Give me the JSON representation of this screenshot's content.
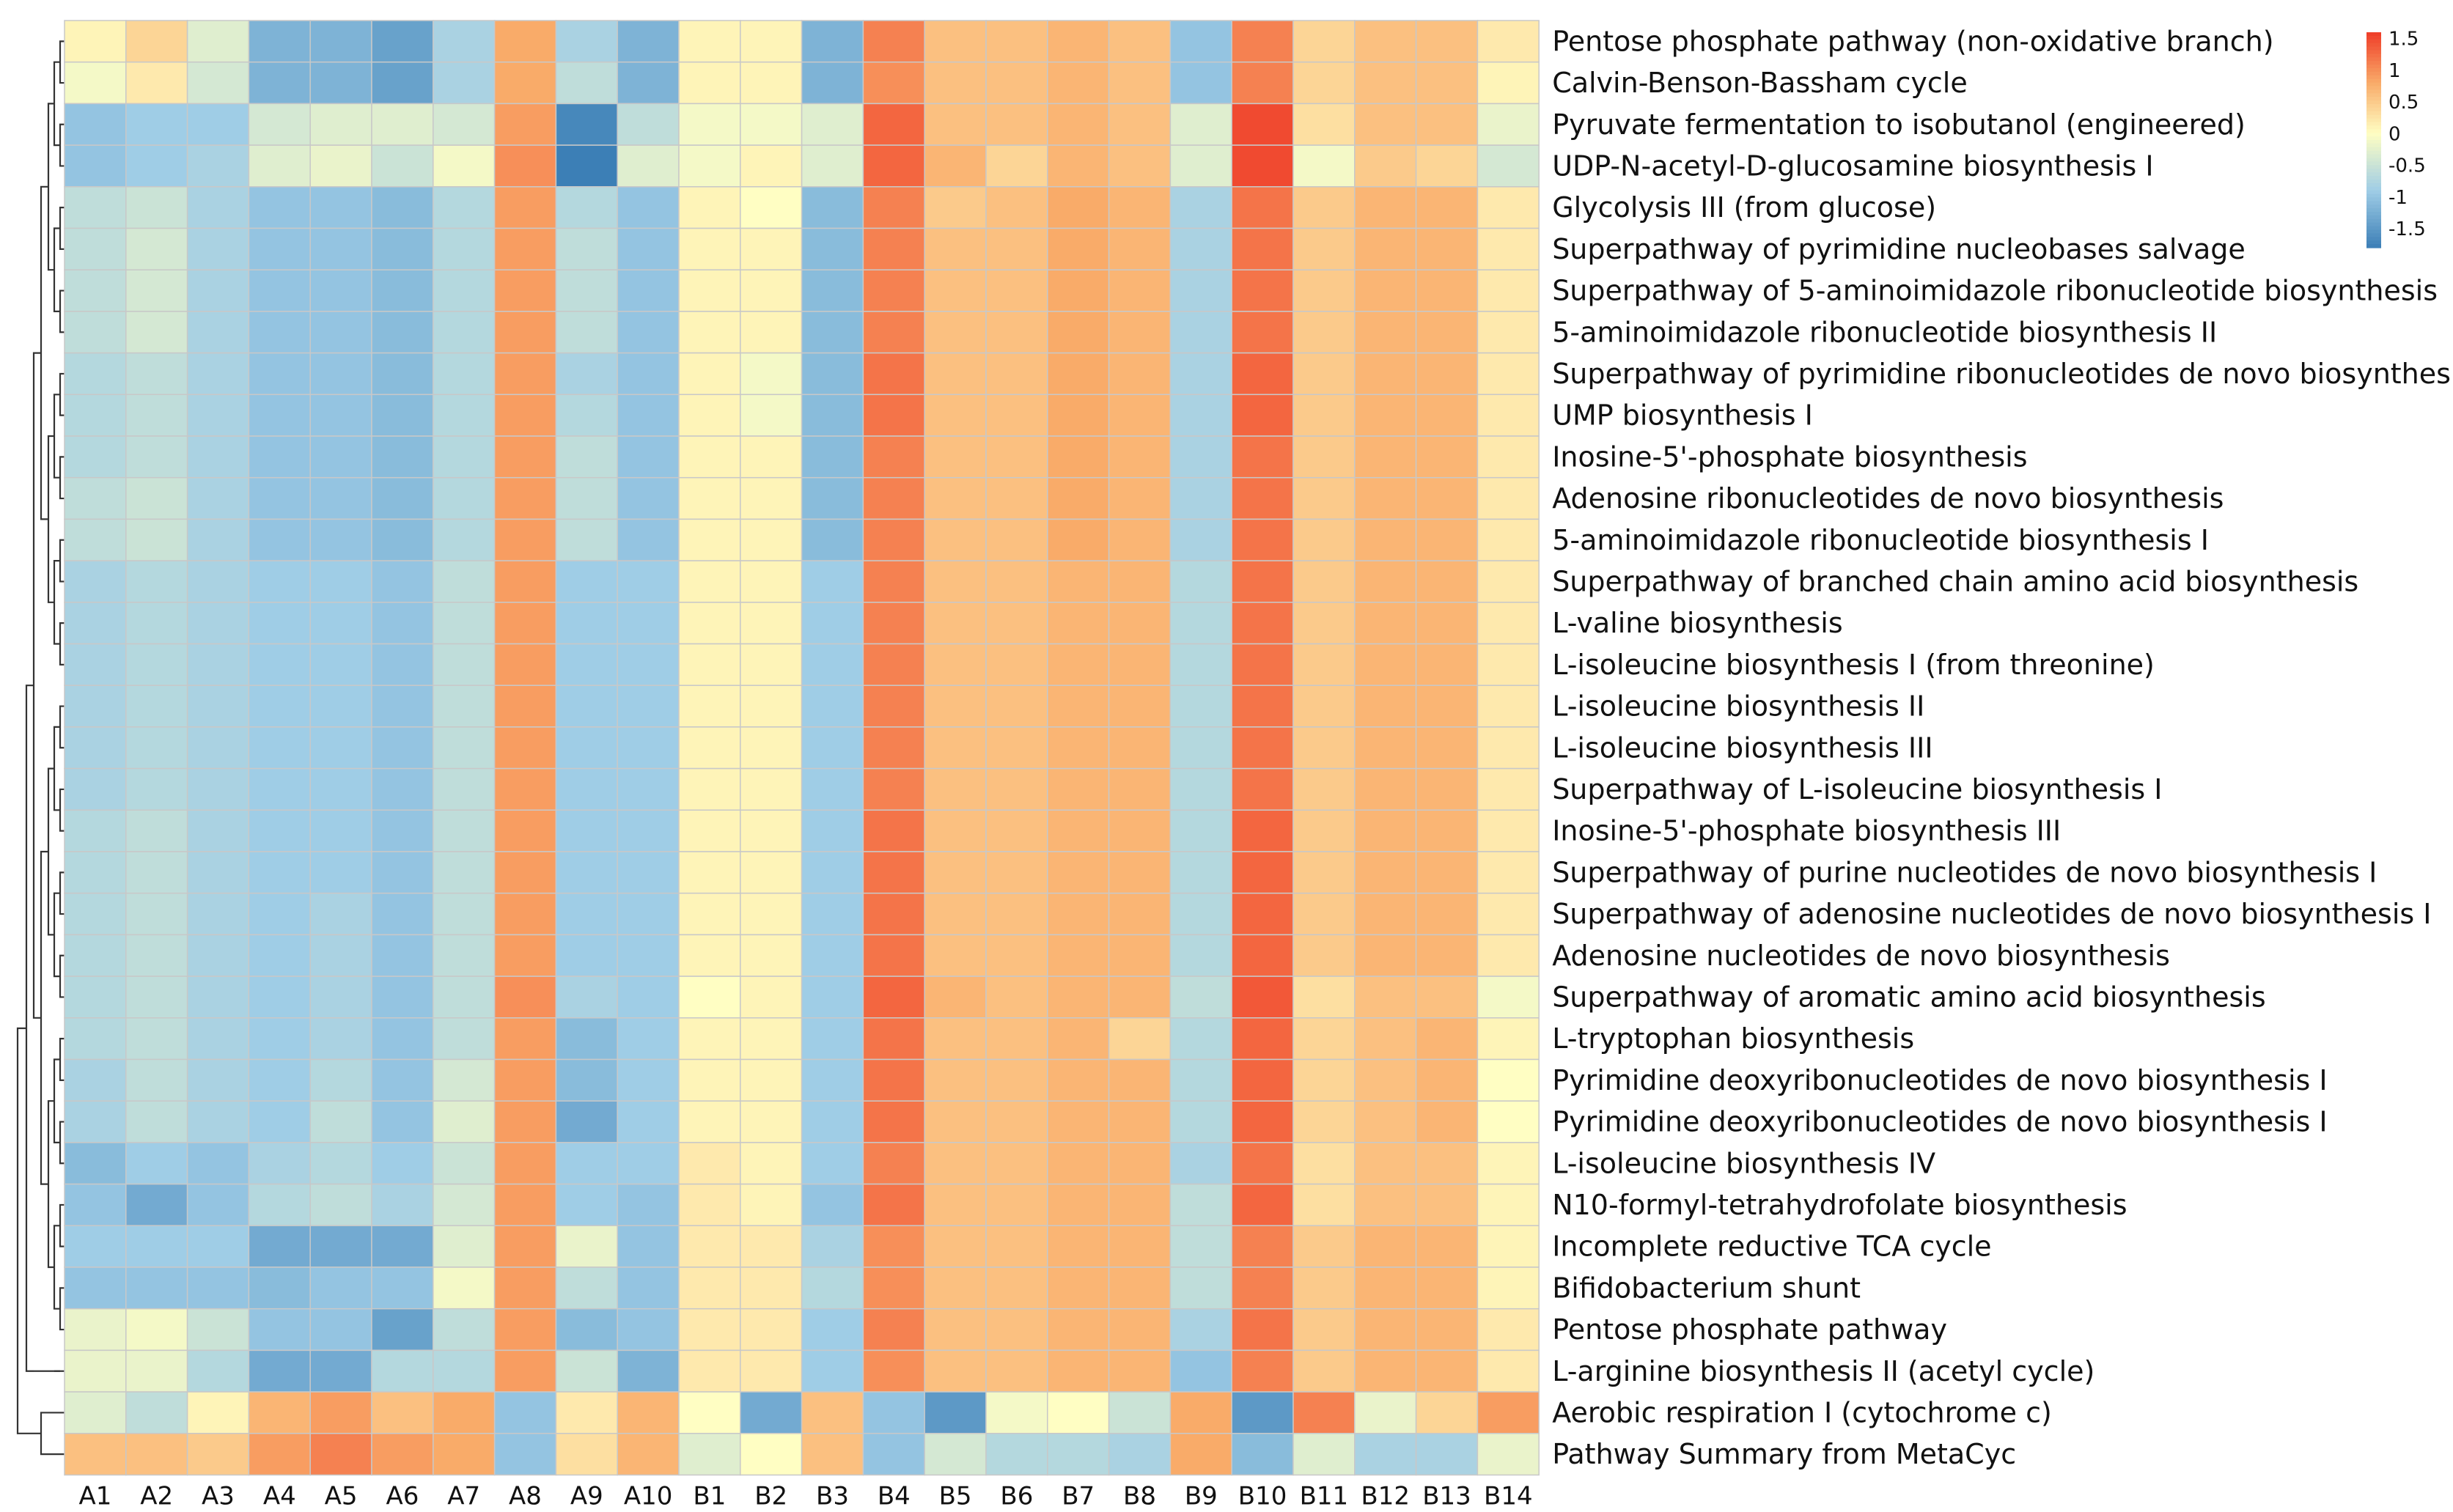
{
  "chart_data": {
    "type": "heatmap",
    "title": "",
    "columns": [
      "A1",
      "A2",
      "A3",
      "A4",
      "A5",
      "A6",
      "A7",
      "A8",
      "A9",
      "A10",
      "B1",
      "B2",
      "B3",
      "B4",
      "B5",
      "B6",
      "B7",
      "B8",
      "B9",
      "B10",
      "B11",
      "B12",
      "B13",
      "B14"
    ],
    "rows": [
      "Pentose phosphate pathway (non-oxidative branch)",
      "Calvin-Benson-Bassham cycle",
      "Pyruvate fermentation to isobutanol (engineered)",
      "UDP-N-acetyl-D-glucosamine biosynthesis I",
      "Glycolysis III (from glucose)",
      "Superpathway of pyrimidine nucleobases salvage",
      "Superpathway of 5-aminoimidazole ribonucleotide biosynthesis",
      "5-aminoimidazole ribonucleotide biosynthesis II",
      "Superpathway of pyrimidine ribonucleotides de novo biosynthesis",
      "UMP biosynthesis I",
      "Inosine-5'-phosphate biosynthesis",
      "Adenosine ribonucleotides de novo biosynthesis",
      "5-aminoimidazole ribonucleotide biosynthesis I",
      "Superpathway of branched chain amino acid biosynthesis",
      "L-valine biosynthesis",
      "L-isoleucine biosynthesis I (from threonine)",
      "L-isoleucine biosynthesis II",
      "L-isoleucine biosynthesis III",
      "Superpathway of L-isoleucine biosynthesis I",
      "Inosine-5'-phosphate biosynthesis III",
      "Superpathway of purine nucleotides de novo biosynthesis I",
      "Superpathway of adenosine nucleotides de novo biosynthesis I",
      "Adenosine nucleotides de novo biosynthesis",
      "Superpathway of aromatic amino acid biosynthesis",
      "L-tryptophan biosynthesis",
      "Pyrimidine deoxyribonucleotides de novo biosynthesis I",
      "Pyrimidine deoxyribonucleotides de novo biosynthesis I",
      "L-isoleucine biosynthesis IV",
      "N10-formyl-tetrahydrofolate biosynthesis",
      "Incomplete reductive TCA cycle",
      "Bifidobacterium shunt",
      "Pentose phosphate pathway",
      "L-arginine biosynthesis II (acetyl cycle)",
      "Aerobic respiration I (cytochrome c)",
      "Pathway Summary from MetaCyc"
    ],
    "values": [
      [
        0.1,
        0.4,
        -0.3,
        -1.2,
        -1.2,
        -1.4,
        -0.8,
        0.8,
        -0.8,
        -1.2,
        0.1,
        0.1,
        -1.2,
        1.1,
        0.6,
        0.6,
        0.7,
        0.6,
        -1.0,
        1.1,
        0.4,
        0.6,
        0.6,
        0.2
      ],
      [
        -0.1,
        0.2,
        -0.4,
        -1.2,
        -1.2,
        -1.4,
        -0.8,
        0.8,
        -0.6,
        -1.2,
        0.1,
        0.1,
        -1.2,
        1.0,
        0.6,
        0.6,
        0.7,
        0.6,
        -1.0,
        1.1,
        0.4,
        0.6,
        0.6,
        0.1
      ],
      [
        -1.0,
        -0.9,
        -0.9,
        -0.4,
        -0.3,
        -0.3,
        -0.4,
        0.9,
        -1.7,
        -0.6,
        -0.1,
        -0.1,
        -0.3,
        1.3,
        0.6,
        0.6,
        0.7,
        0.6,
        -0.3,
        1.5,
        0.3,
        0.6,
        0.6,
        -0.2
      ],
      [
        -1.0,
        -0.9,
        -0.8,
        -0.3,
        -0.2,
        -0.5,
        -0.1,
        1.0,
        -1.8,
        -0.3,
        -0.1,
        0.1,
        -0.3,
        1.3,
        0.7,
        0.4,
        0.7,
        0.6,
        -0.3,
        1.5,
        -0.1,
        0.5,
        0.4,
        -0.4
      ],
      [
        -0.6,
        -0.5,
        -0.8,
        -1.0,
        -1.0,
        -1.1,
        -0.7,
        0.9,
        -0.7,
        -1.0,
        0.1,
        0.0,
        -1.1,
        1.1,
        0.5,
        0.6,
        0.8,
        0.7,
        -0.8,
        1.2,
        0.5,
        0.7,
        0.7,
        0.2
      ],
      [
        -0.6,
        -0.4,
        -0.8,
        -1.0,
        -1.0,
        -1.1,
        -0.7,
        0.9,
        -0.6,
        -1.0,
        0.1,
        0.1,
        -1.1,
        1.1,
        0.6,
        0.6,
        0.8,
        0.7,
        -0.8,
        1.2,
        0.5,
        0.7,
        0.7,
        0.2
      ],
      [
        -0.6,
        -0.4,
        -0.8,
        -1.0,
        -1.0,
        -1.1,
        -0.7,
        0.9,
        -0.6,
        -1.0,
        0.1,
        0.1,
        -1.1,
        1.1,
        0.6,
        0.6,
        0.8,
        0.7,
        -0.8,
        1.2,
        0.5,
        0.7,
        0.7,
        0.2
      ],
      [
        -0.6,
        -0.4,
        -0.8,
        -1.0,
        -1.0,
        -1.1,
        -0.7,
        0.9,
        -0.6,
        -1.0,
        0.1,
        0.1,
        -1.1,
        1.1,
        0.6,
        0.6,
        0.8,
        0.7,
        -0.8,
        1.2,
        0.5,
        0.7,
        0.7,
        0.2
      ],
      [
        -0.7,
        -0.6,
        -0.8,
        -1.0,
        -1.0,
        -1.1,
        -0.7,
        0.9,
        -0.8,
        -1.0,
        0.1,
        -0.1,
        -1.1,
        1.2,
        0.6,
        0.6,
        0.8,
        0.7,
        -0.8,
        1.3,
        0.5,
        0.7,
        0.7,
        0.2
      ],
      [
        -0.7,
        -0.6,
        -0.8,
        -1.0,
        -1.0,
        -1.1,
        -0.7,
        0.9,
        -0.7,
        -1.0,
        0.1,
        -0.1,
        -1.1,
        1.2,
        0.6,
        0.6,
        0.8,
        0.7,
        -0.8,
        1.3,
        0.5,
        0.7,
        0.7,
        0.2
      ],
      [
        -0.7,
        -0.6,
        -0.8,
        -1.0,
        -1.0,
        -1.1,
        -0.7,
        0.9,
        -0.6,
        -1.0,
        0.1,
        0.1,
        -1.1,
        1.1,
        0.6,
        0.6,
        0.8,
        0.7,
        -0.8,
        1.2,
        0.5,
        0.7,
        0.7,
        0.2
      ],
      [
        -0.6,
        -0.5,
        -0.8,
        -1.0,
        -1.0,
        -1.1,
        -0.7,
        0.9,
        -0.6,
        -1.0,
        0.1,
        0.1,
        -1.1,
        1.1,
        0.6,
        0.6,
        0.8,
        0.7,
        -0.8,
        1.2,
        0.5,
        0.7,
        0.7,
        0.2
      ],
      [
        -0.6,
        -0.5,
        -0.8,
        -1.0,
        -1.0,
        -1.1,
        -0.7,
        0.9,
        -0.6,
        -1.0,
        0.1,
        0.1,
        -1.1,
        1.1,
        0.6,
        0.6,
        0.8,
        0.7,
        -0.8,
        1.2,
        0.5,
        0.7,
        0.7,
        0.2
      ],
      [
        -0.8,
        -0.7,
        -0.8,
        -0.9,
        -0.9,
        -1.0,
        -0.6,
        0.9,
        -0.9,
        -0.9,
        0.1,
        0.1,
        -0.9,
        1.1,
        0.6,
        0.6,
        0.7,
        0.7,
        -0.7,
        1.2,
        0.5,
        0.7,
        0.7,
        0.2
      ],
      [
        -0.8,
        -0.7,
        -0.8,
        -0.9,
        -0.9,
        -1.0,
        -0.6,
        0.9,
        -0.9,
        -0.9,
        0.1,
        0.1,
        -0.9,
        1.1,
        0.6,
        0.6,
        0.7,
        0.7,
        -0.7,
        1.2,
        0.5,
        0.7,
        0.7,
        0.2
      ],
      [
        -0.8,
        -0.7,
        -0.8,
        -0.9,
        -0.9,
        -1.0,
        -0.6,
        0.9,
        -0.9,
        -0.9,
        0.1,
        0.1,
        -0.9,
        1.1,
        0.6,
        0.6,
        0.7,
        0.7,
        -0.7,
        1.2,
        0.5,
        0.7,
        0.7,
        0.2
      ],
      [
        -0.8,
        -0.7,
        -0.8,
        -0.9,
        -0.9,
        -1.0,
        -0.6,
        0.9,
        -0.9,
        -0.9,
        0.1,
        0.1,
        -0.9,
        1.1,
        0.6,
        0.6,
        0.7,
        0.7,
        -0.7,
        1.2,
        0.5,
        0.7,
        0.7,
        0.2
      ],
      [
        -0.8,
        -0.7,
        -0.8,
        -0.9,
        -0.9,
        -1.0,
        -0.6,
        0.9,
        -0.9,
        -0.9,
        0.1,
        0.1,
        -0.9,
        1.1,
        0.6,
        0.6,
        0.7,
        0.7,
        -0.7,
        1.2,
        0.5,
        0.7,
        0.7,
        0.2
      ],
      [
        -0.8,
        -0.7,
        -0.8,
        -0.9,
        -0.9,
        -1.0,
        -0.6,
        0.9,
        -0.9,
        -0.9,
        0.1,
        0.1,
        -0.9,
        1.1,
        0.6,
        0.6,
        0.7,
        0.7,
        -0.7,
        1.2,
        0.5,
        0.7,
        0.7,
        0.2
      ],
      [
        -0.7,
        -0.6,
        -0.8,
        -0.9,
        -0.9,
        -1.0,
        -0.6,
        0.9,
        -0.9,
        -0.9,
        0.1,
        0.1,
        -0.9,
        1.2,
        0.6,
        0.6,
        0.7,
        0.7,
        -0.7,
        1.3,
        0.5,
        0.7,
        0.7,
        0.2
      ],
      [
        -0.7,
        -0.6,
        -0.8,
        -0.9,
        -0.9,
        -1.0,
        -0.6,
        0.9,
        -0.9,
        -0.9,
        0.1,
        0.1,
        -0.9,
        1.2,
        0.6,
        0.6,
        0.7,
        0.7,
        -0.7,
        1.3,
        0.5,
        0.7,
        0.7,
        0.2
      ],
      [
        -0.7,
        -0.6,
        -0.8,
        -0.9,
        -0.8,
        -1.0,
        -0.6,
        0.9,
        -0.9,
        -0.9,
        0.1,
        0.1,
        -0.9,
        1.2,
        0.6,
        0.6,
        0.7,
        0.7,
        -0.7,
        1.3,
        0.5,
        0.7,
        0.7,
        0.2
      ],
      [
        -0.7,
        -0.6,
        -0.8,
        -0.9,
        -0.8,
        -1.0,
        -0.6,
        0.9,
        -0.9,
        -0.9,
        0.1,
        0.1,
        -0.9,
        1.2,
        0.6,
        0.6,
        0.7,
        0.7,
        -0.7,
        1.3,
        0.5,
        0.7,
        0.7,
        0.2
      ],
      [
        -0.7,
        -0.6,
        -0.8,
        -0.9,
        -0.8,
        -1.0,
        -0.6,
        1.0,
        -0.8,
        -0.9,
        0.0,
        0.1,
        -0.9,
        1.3,
        0.7,
        0.6,
        0.7,
        0.7,
        -0.6,
        1.4,
        0.3,
        0.6,
        0.6,
        -0.1
      ],
      [
        -0.7,
        -0.6,
        -0.8,
        -0.9,
        -0.8,
        -1.0,
        -0.6,
        0.9,
        -1.1,
        -0.9,
        0.1,
        0.1,
        -0.9,
        1.2,
        0.6,
        0.6,
        0.7,
        0.4,
        -0.7,
        1.3,
        0.4,
        0.6,
        0.7,
        0.1
      ],
      [
        -0.8,
        -0.6,
        -0.8,
        -0.9,
        -0.7,
        -1.0,
        -0.4,
        0.9,
        -1.1,
        -0.9,
        0.1,
        0.1,
        -0.9,
        1.2,
        0.6,
        0.6,
        0.7,
        0.7,
        -0.7,
        1.3,
        0.4,
        0.6,
        0.7,
        0.0
      ],
      [
        -0.8,
        -0.6,
        -0.8,
        -0.9,
        -0.6,
        -1.0,
        -0.3,
        0.9,
        -1.3,
        -0.9,
        0.1,
        0.1,
        -0.9,
        1.2,
        0.6,
        0.6,
        0.7,
        0.7,
        -0.7,
        1.3,
        0.4,
        0.6,
        0.7,
        0.0
      ],
      [
        -1.1,
        -0.9,
        -1.0,
        -0.8,
        -0.7,
        -0.9,
        -0.5,
        0.9,
        -0.9,
        -0.9,
        0.2,
        0.1,
        -0.9,
        1.1,
        0.6,
        0.6,
        0.7,
        0.7,
        -0.8,
        1.2,
        0.3,
        0.6,
        0.6,
        0.1
      ],
      [
        -1.0,
        -1.3,
        -1.0,
        -0.7,
        -0.6,
        -0.8,
        -0.4,
        0.9,
        -0.9,
        -1.0,
        0.2,
        0.1,
        -1.0,
        1.2,
        0.6,
        0.6,
        0.7,
        0.7,
        -0.6,
        1.3,
        0.3,
        0.6,
        0.6,
        0.1
      ],
      [
        -0.9,
        -0.9,
        -0.9,
        -1.3,
        -1.3,
        -1.3,
        -0.3,
        0.9,
        -0.2,
        -1.0,
        0.2,
        0.2,
        -0.8,
        1.0,
        0.6,
        0.6,
        0.7,
        0.7,
        -0.6,
        1.1,
        0.5,
        0.7,
        0.7,
        0.1
      ],
      [
        -1.0,
        -1.0,
        -1.0,
        -1.1,
        -1.0,
        -1.0,
        -0.1,
        0.9,
        -0.6,
        -1.0,
        0.2,
        0.2,
        -0.7,
        1.0,
        0.6,
        0.6,
        0.7,
        0.7,
        -0.6,
        1.1,
        0.5,
        0.7,
        0.7,
        0.1
      ],
      [
        -0.2,
        -0.1,
        -0.5,
        -1.0,
        -1.0,
        -1.4,
        -0.6,
        0.9,
        -1.1,
        -1.0,
        0.2,
        0.2,
        -0.9,
        1.1,
        0.6,
        0.6,
        0.7,
        0.7,
        -0.8,
        1.2,
        0.5,
        0.7,
        0.7,
        0.2
      ],
      [
        -0.2,
        -0.2,
        -0.7,
        -1.3,
        -1.3,
        -0.7,
        -0.7,
        0.9,
        -0.5,
        -1.2,
        0.2,
        0.2,
        -0.9,
        1.0,
        0.6,
        0.6,
        0.7,
        0.7,
        -1.0,
        1.1,
        0.5,
        0.7,
        0.7,
        0.2
      ],
      [
        -0.3,
        -0.6,
        0.1,
        0.7,
        0.9,
        0.6,
        0.8,
        -1.0,
        0.2,
        0.7,
        0.0,
        -1.3,
        0.6,
        -1.0,
        -1.5,
        -0.1,
        0.0,
        -0.5,
        0.8,
        -1.5,
        1.1,
        -0.2,
        0.4,
        0.9
      ],
      [
        0.6,
        0.6,
        0.5,
        0.9,
        1.1,
        0.9,
        0.8,
        -1.0,
        0.3,
        0.7,
        -0.3,
        0.0,
        0.6,
        -1.0,
        -0.4,
        -0.7,
        -0.7,
        -0.8,
        0.8,
        -1.1,
        -0.3,
        -0.8,
        -0.8,
        -0.2
      ]
    ],
    "legend": {
      "position": "top-right",
      "ticks": [
        "1.5",
        "1",
        "0.5",
        "0",
        "-0.5",
        "-1",
        "-1.5"
      ],
      "tick_values": [
        1.5,
        1,
        0.5,
        0,
        -0.5,
        -1,
        -1.5
      ],
      "range": [
        -1.8,
        1.6
      ]
    },
    "colors": {
      "low": "#3c7fb6",
      "mid_low": "#9fcde6",
      "mid": "#fffec3",
      "mid_high": "#f9ab69",
      "high": "#ef3c28",
      "grid": "#c8c8c8"
    },
    "dendrogram": "row clustering on left"
  }
}
